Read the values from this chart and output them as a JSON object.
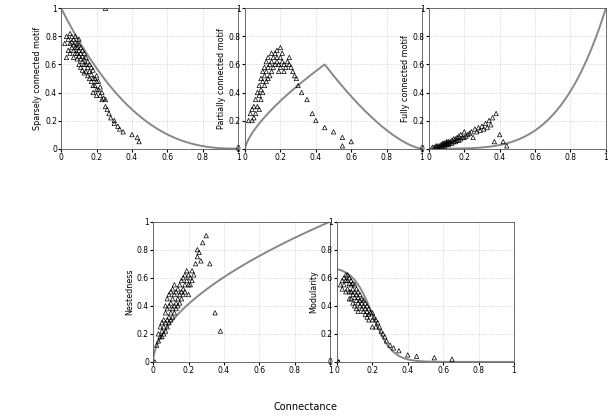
{
  "xlabel": "Connectance",
  "panels": [
    {
      "ylabel": "Sparsely connected motif"
    },
    {
      "ylabel": "Partially connected motif"
    },
    {
      "ylabel": "Fully connected motif"
    },
    {
      "ylabel": "Nestedness"
    },
    {
      "ylabel": "Modularity"
    }
  ],
  "scatter_color": "#000000",
  "curve_color": "#888888",
  "grid_color": "#bbbbbb",
  "background_color": "#ffffff",
  "scatter_data": {
    "sparsely": {
      "x": [
        0.25,
        0.02,
        0.03,
        0.03,
        0.04,
        0.04,
        0.05,
        0.05,
        0.05,
        0.06,
        0.06,
        0.06,
        0.07,
        0.07,
        0.07,
        0.07,
        0.08,
        0.08,
        0.08,
        0.08,
        0.09,
        0.09,
        0.09,
        0.09,
        0.1,
        0.1,
        0.1,
        0.1,
        0.1,
        0.11,
        0.11,
        0.11,
        0.11,
        0.12,
        0.12,
        0.12,
        0.12,
        0.13,
        0.13,
        0.13,
        0.13,
        0.14,
        0.14,
        0.14,
        0.15,
        0.15,
        0.15,
        0.16,
        0.16,
        0.16,
        0.17,
        0.17,
        0.17,
        0.18,
        0.18,
        0.18,
        0.18,
        0.19,
        0.19,
        0.2,
        0.2,
        0.2,
        0.2,
        0.21,
        0.21,
        0.22,
        0.22,
        0.23,
        0.23,
        0.24,
        0.25,
        0.25,
        0.26,
        0.27,
        0.28,
        0.3,
        0.3,
        0.32,
        0.33,
        0.35,
        0.4,
        0.43,
        0.44
      ],
      "y": [
        1.0,
        0.75,
        0.8,
        0.65,
        0.78,
        0.7,
        0.82,
        0.75,
        0.68,
        0.8,
        0.76,
        0.72,
        0.78,
        0.74,
        0.7,
        0.65,
        0.8,
        0.76,
        0.72,
        0.68,
        0.75,
        0.72,
        0.68,
        0.64,
        0.78,
        0.74,
        0.7,
        0.66,
        0.6,
        0.72,
        0.68,
        0.64,
        0.58,
        0.7,
        0.66,
        0.62,
        0.56,
        0.68,
        0.64,
        0.6,
        0.54,
        0.65,
        0.6,
        0.55,
        0.62,
        0.58,
        0.52,
        0.6,
        0.55,
        0.5,
        0.58,
        0.53,
        0.48,
        0.56,
        0.5,
        0.45,
        0.4,
        0.5,
        0.45,
        0.52,
        0.48,
        0.42,
        0.38,
        0.48,
        0.42,
        0.44,
        0.38,
        0.4,
        0.35,
        0.36,
        0.35,
        0.3,
        0.28,
        0.25,
        0.22,
        0.2,
        0.18,
        0.16,
        0.14,
        0.12,
        0.1,
        0.08,
        0.05
      ]
    },
    "partially": {
      "x": [
        0.55,
        0.02,
        0.03,
        0.04,
        0.04,
        0.05,
        0.05,
        0.06,
        0.06,
        0.07,
        0.07,
        0.08,
        0.08,
        0.08,
        0.09,
        0.09,
        0.09,
        0.1,
        0.1,
        0.1,
        0.11,
        0.11,
        0.11,
        0.12,
        0.12,
        0.12,
        0.13,
        0.13,
        0.13,
        0.14,
        0.14,
        0.15,
        0.15,
        0.15,
        0.16,
        0.16,
        0.17,
        0.17,
        0.18,
        0.18,
        0.18,
        0.19,
        0.19,
        0.2,
        0.2,
        0.2,
        0.21,
        0.21,
        0.22,
        0.22,
        0.23,
        0.24,
        0.25,
        0.25,
        0.26,
        0.27,
        0.28,
        0.29,
        0.3,
        0.32,
        0.35,
        0.38,
        0.4,
        0.45,
        0.5,
        0.55,
        0.6
      ],
      "y": [
        0.02,
        0.2,
        0.25,
        0.2,
        0.28,
        0.22,
        0.3,
        0.25,
        0.35,
        0.3,
        0.4,
        0.28,
        0.38,
        0.45,
        0.35,
        0.42,
        0.5,
        0.4,
        0.48,
        0.55,
        0.45,
        0.52,
        0.58,
        0.48,
        0.55,
        0.62,
        0.5,
        0.58,
        0.65,
        0.52,
        0.6,
        0.55,
        0.62,
        0.68,
        0.58,
        0.65,
        0.6,
        0.68,
        0.62,
        0.7,
        0.65,
        0.6,
        0.55,
        0.65,
        0.58,
        0.72,
        0.62,
        0.68,
        0.6,
        0.55,
        0.58,
        0.62,
        0.6,
        0.65,
        0.58,
        0.55,
        0.52,
        0.5,
        0.45,
        0.4,
        0.35,
        0.25,
        0.2,
        0.15,
        0.12,
        0.08,
        0.05
      ]
    },
    "fully": {
      "x": [
        0.02,
        0.03,
        0.04,
        0.04,
        0.05,
        0.05,
        0.06,
        0.06,
        0.07,
        0.07,
        0.08,
        0.08,
        0.08,
        0.09,
        0.09,
        0.09,
        0.1,
        0.1,
        0.1,
        0.11,
        0.11,
        0.11,
        0.12,
        0.12,
        0.13,
        0.13,
        0.14,
        0.14,
        0.15,
        0.15,
        0.16,
        0.16,
        0.17,
        0.17,
        0.18,
        0.18,
        0.19,
        0.2,
        0.2,
        0.21,
        0.22,
        0.23,
        0.24,
        0.25,
        0.26,
        0.27,
        0.28,
        0.29,
        0.3,
        0.31,
        0.32,
        0.33,
        0.34,
        0.35,
        0.36,
        0.37,
        0.38,
        0.4,
        0.42,
        0.44
      ],
      "y": [
        0.01,
        0.01,
        0.01,
        0.02,
        0.01,
        0.02,
        0.01,
        0.02,
        0.02,
        0.03,
        0.02,
        0.03,
        0.04,
        0.02,
        0.03,
        0.04,
        0.03,
        0.04,
        0.05,
        0.03,
        0.04,
        0.05,
        0.04,
        0.05,
        0.04,
        0.06,
        0.05,
        0.07,
        0.05,
        0.07,
        0.06,
        0.08,
        0.06,
        0.09,
        0.07,
        0.1,
        0.08,
        0.08,
        0.12,
        0.09,
        0.1,
        0.11,
        0.12,
        0.08,
        0.14,
        0.12,
        0.15,
        0.13,
        0.16,
        0.14,
        0.18,
        0.15,
        0.2,
        0.17,
        0.22,
        0.05,
        0.25,
        0.1,
        0.05,
        0.02
      ]
    },
    "nestedness": {
      "x": [
        0.01,
        0.02,
        0.03,
        0.03,
        0.04,
        0.04,
        0.05,
        0.05,
        0.05,
        0.06,
        0.06,
        0.06,
        0.07,
        0.07,
        0.07,
        0.07,
        0.08,
        0.08,
        0.08,
        0.08,
        0.09,
        0.09,
        0.09,
        0.09,
        0.1,
        0.1,
        0.1,
        0.1,
        0.11,
        0.11,
        0.11,
        0.11,
        0.12,
        0.12,
        0.12,
        0.12,
        0.13,
        0.13,
        0.13,
        0.14,
        0.14,
        0.14,
        0.15,
        0.15,
        0.15,
        0.16,
        0.16,
        0.16,
        0.17,
        0.17,
        0.17,
        0.18,
        0.18,
        0.18,
        0.19,
        0.19,
        0.2,
        0.2,
        0.2,
        0.21,
        0.21,
        0.22,
        0.22,
        0.23,
        0.24,
        0.25,
        0.25,
        0.26,
        0.27,
        0.28,
        0.3,
        0.32,
        0.35,
        0.38
      ],
      "y": [
        0.0,
        0.12,
        0.15,
        0.2,
        0.18,
        0.25,
        0.22,
        0.28,
        0.18,
        0.25,
        0.3,
        0.2,
        0.28,
        0.35,
        0.22,
        0.4,
        0.3,
        0.38,
        0.25,
        0.45,
        0.32,
        0.4,
        0.28,
        0.48,
        0.35,
        0.42,
        0.3,
        0.5,
        0.38,
        0.45,
        0.32,
        0.52,
        0.4,
        0.48,
        0.35,
        0.55,
        0.42,
        0.5,
        0.38,
        0.45,
        0.52,
        0.4,
        0.48,
        0.55,
        0.42,
        0.5,
        0.58,
        0.45,
        0.52,
        0.6,
        0.48,
        0.55,
        0.62,
        0.5,
        0.58,
        0.65,
        0.55,
        0.62,
        0.48,
        0.6,
        0.55,
        0.58,
        0.65,
        0.62,
        0.7,
        0.75,
        0.8,
        0.78,
        0.72,
        0.85,
        0.9,
        0.7,
        0.35,
        0.22
      ]
    },
    "modularity": {
      "x": [
        0.01,
        0.01,
        0.02,
        0.03,
        0.03,
        0.04,
        0.04,
        0.05,
        0.05,
        0.05,
        0.06,
        0.06,
        0.06,
        0.07,
        0.07,
        0.07,
        0.07,
        0.08,
        0.08,
        0.08,
        0.08,
        0.09,
        0.09,
        0.09,
        0.09,
        0.1,
        0.1,
        0.1,
        0.1,
        0.11,
        0.11,
        0.11,
        0.11,
        0.12,
        0.12,
        0.12,
        0.12,
        0.13,
        0.13,
        0.13,
        0.14,
        0.14,
        0.14,
        0.15,
        0.15,
        0.15,
        0.16,
        0.16,
        0.16,
        0.17,
        0.17,
        0.17,
        0.18,
        0.18,
        0.18,
        0.19,
        0.2,
        0.2,
        0.2,
        0.21,
        0.22,
        0.22,
        0.23,
        0.24,
        0.25,
        0.26,
        0.27,
        0.28,
        0.3,
        0.32,
        0.35,
        0.4,
        0.45,
        0.55,
        0.65
      ],
      "y": [
        0.0,
        0.0,
        0.55,
        0.58,
        0.52,
        0.6,
        0.55,
        0.62,
        0.58,
        0.5,
        0.62,
        0.58,
        0.52,
        0.6,
        0.56,
        0.5,
        0.45,
        0.58,
        0.55,
        0.5,
        0.45,
        0.56,
        0.52,
        0.48,
        0.42,
        0.55,
        0.5,
        0.46,
        0.4,
        0.52,
        0.48,
        0.44,
        0.38,
        0.5,
        0.46,
        0.42,
        0.36,
        0.48,
        0.44,
        0.4,
        0.45,
        0.42,
        0.38,
        0.44,
        0.4,
        0.36,
        0.42,
        0.38,
        0.34,
        0.4,
        0.36,
        0.32,
        0.38,
        0.34,
        0.3,
        0.35,
        0.35,
        0.3,
        0.25,
        0.32,
        0.3,
        0.25,
        0.28,
        0.25,
        0.22,
        0.2,
        0.18,
        0.15,
        0.12,
        0.1,
        0.08,
        0.05,
        0.04,
        0.03,
        0.02
      ]
    }
  }
}
